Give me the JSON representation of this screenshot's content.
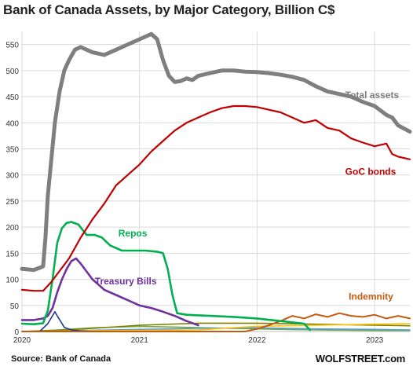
{
  "chart_data": {
    "type": "line",
    "title": "Bank of Canada Assets, by Major Category, Billion C$",
    "xlabel": "",
    "ylabel": "",
    "x_ticks": [
      "2020",
      "2021",
      "2022",
      "2023"
    ],
    "x_range": [
      2020.0,
      2023.3
    ],
    "ylim": [
      0,
      575
    ],
    "y_ticks": [
      0,
      50,
      100,
      150,
      200,
      250,
      300,
      350,
      400,
      450,
      500,
      550
    ],
    "grid": true,
    "legend": "inline-labels",
    "series": [
      {
        "name": "Total assets",
        "color": "#7f7f7f",
        "x": [
          2020.0,
          2020.1,
          2020.15,
          2020.18,
          2020.2,
          2020.22,
          2020.25,
          2020.28,
          2020.32,
          2020.36,
          2020.4,
          2020.45,
          2020.5,
          2020.55,
          2020.6,
          2020.7,
          2020.8,
          2020.9,
          2021.0,
          2021.05,
          2021.1,
          2021.15,
          2021.2,
          2021.25,
          2021.3,
          2021.35,
          2021.4,
          2021.45,
          2021.5,
          2021.6,
          2021.7,
          2021.8,
          2021.9,
          2022.0,
          2022.1,
          2022.2,
          2022.3,
          2022.4,
          2022.5,
          2022.6,
          2022.7,
          2022.8,
          2022.9,
          2023.0,
          2023.1,
          2023.15,
          2023.2,
          2023.3
        ],
        "values": [
          120,
          118,
          122,
          125,
          180,
          260,
          330,
          400,
          460,
          500,
          520,
          540,
          545,
          540,
          535,
          530,
          540,
          550,
          560,
          565,
          570,
          560,
          520,
          490,
          478,
          480,
          485,
          482,
          490,
          495,
          500,
          500,
          498,
          497,
          495,
          492,
          488,
          482,
          470,
          460,
          455,
          450,
          440,
          432,
          415,
          410,
          395,
          383
        ]
      },
      {
        "name": "GoC bonds",
        "color": "#c00000",
        "x": [
          2020.0,
          2020.1,
          2020.18,
          2020.25,
          2020.3,
          2020.35,
          2020.4,
          2020.45,
          2020.5,
          2020.6,
          2020.7,
          2020.8,
          2020.9,
          2021.0,
          2021.1,
          2021.2,
          2021.3,
          2021.4,
          2021.5,
          2021.6,
          2021.7,
          2021.8,
          2021.9,
          2022.0,
          2022.1,
          2022.2,
          2022.3,
          2022.4,
          2022.5,
          2022.6,
          2022.7,
          2022.8,
          2022.9,
          2023.0,
          2023.1,
          2023.15,
          2023.2,
          2023.3
        ],
        "values": [
          80,
          78,
          78,
          95,
          110,
          125,
          140,
          160,
          180,
          215,
          245,
          280,
          300,
          320,
          345,
          365,
          385,
          400,
          410,
          420,
          428,
          432,
          432,
          430,
          425,
          420,
          410,
          400,
          405,
          390,
          385,
          370,
          362,
          355,
          360,
          340,
          335,
          330
        ]
      },
      {
        "name": "Repos",
        "color": "#00b050",
        "x": [
          2020.0,
          2020.1,
          2020.18,
          2020.22,
          2020.26,
          2020.3,
          2020.34,
          2020.38,
          2020.42,
          2020.48,
          2020.55,
          2020.62,
          2020.68,
          2020.75,
          2020.85,
          2020.95,
          2021.05,
          2021.15,
          2021.2,
          2021.24,
          2021.28,
          2021.32,
          2021.4,
          2021.6,
          2021.8,
          2022.0,
          2022.2,
          2022.4,
          2022.45
        ],
        "values": [
          15,
          14,
          16,
          40,
          100,
          170,
          198,
          208,
          210,
          205,
          185,
          185,
          180,
          165,
          155,
          155,
          155,
          153,
          150,
          120,
          70,
          35,
          32,
          30,
          28,
          25,
          20,
          15,
          3
        ]
      },
      {
        "name": "Treasury Bills",
        "color": "#7030a0",
        "x": [
          2020.0,
          2020.1,
          2020.18,
          2020.22,
          2020.26,
          2020.3,
          2020.34,
          2020.38,
          2020.42,
          2020.46,
          2020.5,
          2020.55,
          2020.6,
          2020.65,
          2020.7,
          2020.8,
          2020.9,
          2021.0,
          2021.1,
          2021.2,
          2021.3,
          2021.4,
          2021.5
        ],
        "values": [
          22,
          22,
          25,
          30,
          45,
          75,
          100,
          120,
          135,
          140,
          130,
          115,
          100,
          90,
          80,
          70,
          60,
          50,
          45,
          38,
          30,
          20,
          12
        ]
      },
      {
        "name": "Indemnity",
        "color": "#c55a11",
        "x": [
          2020.0,
          2021.0,
          2021.6,
          2021.9,
          2022.0,
          2022.1,
          2022.2,
          2022.3,
          2022.4,
          2022.5,
          2022.6,
          2022.7,
          2022.8,
          2022.9,
          2023.0,
          2023.1,
          2023.2,
          2023.3
        ],
        "values": [
          0,
          0,
          0,
          0,
          5,
          12,
          20,
          30,
          25,
          33,
          28,
          35,
          30,
          28,
          32,
          25,
          30,
          25
        ]
      },
      {
        "name": "",
        "color": "#1f3a93",
        "x": [
          2020.0,
          2020.15,
          2020.22,
          2020.28,
          2020.3,
          2020.36,
          2020.42,
          2020.5,
          2020.6,
          2020.7
        ],
        "values": [
          0,
          0,
          15,
          38,
          30,
          8,
          3,
          1,
          0,
          0
        ]
      },
      {
        "name": "",
        "color": "#ffc000",
        "x": [
          2020.0,
          2020.5,
          2021.0,
          2021.5,
          2021.7,
          2022.0,
          2022.5,
          2023.0,
          2023.3
        ],
        "values": [
          0,
          1,
          2,
          3,
          6,
          10,
          12,
          14,
          15
        ]
      },
      {
        "name": "",
        "color": "#808000",
        "x": [
          2020.0,
          2020.3,
          2020.6,
          2021.0,
          2021.5,
          2022.0,
          2022.5,
          2023.0,
          2023.3
        ],
        "values": [
          0,
          2,
          6,
          12,
          16,
          16,
          14,
          12,
          11
        ]
      },
      {
        "name": "",
        "color": "#5b9bd5",
        "x": [
          2020.0,
          2020.5,
          2021.0,
          2021.5,
          2022.0,
          2022.5,
          2023.0,
          2023.3
        ],
        "values": [
          0,
          2,
          4,
          6,
          7,
          5,
          4,
          3
        ]
      },
      {
        "name": "",
        "color": "#70ad47",
        "x": [
          2020.0,
          2020.3,
          2020.6,
          2021.0,
          2021.4,
          2022.0,
          2022.5,
          2023.0,
          2023.3
        ],
        "values": [
          0,
          3,
          7,
          10,
          8,
          5,
          3,
          2,
          2
        ]
      }
    ],
    "annotations": [
      {
        "text": "Total assets",
        "color": "#7f7f7f",
        "x": 2022.75,
        "y": 447
      },
      {
        "text": "GoC bonds",
        "color": "#c00000",
        "x": 2022.75,
        "y": 300
      },
      {
        "text": "Repos",
        "color": "#00b050",
        "x": 2020.82,
        "y": 182
      },
      {
        "text": "Treasury Bills",
        "color": "#7030a0",
        "x": 2020.62,
        "y": 90
      },
      {
        "text": "Indemnity",
        "color": "#c55a11",
        "x": 2022.78,
        "y": 61
      }
    ]
  },
  "footer": {
    "source": "Source: Bank of Canada",
    "brand": "WOLFSTREET.com"
  }
}
